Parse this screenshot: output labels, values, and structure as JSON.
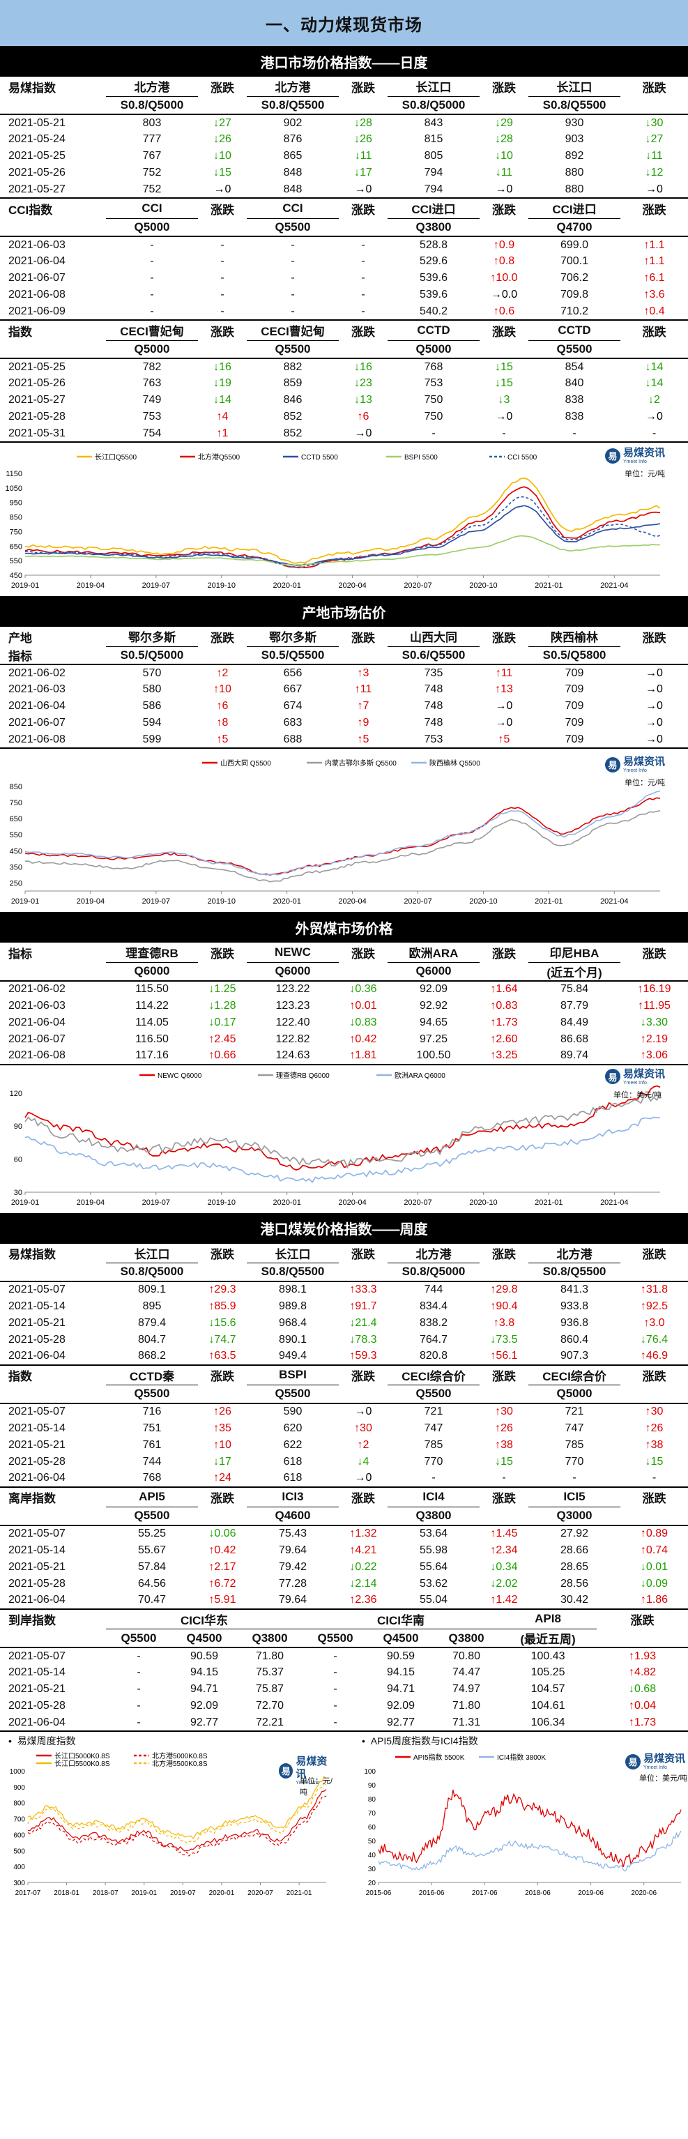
{
  "page_title": "一、动力煤现货市场",
  "brand": {
    "name": "易煤资讯",
    "sub": "Ymeet Info",
    "unit_yuan": "单位：元/吨",
    "unit_usd": "单位：美元/吨"
  },
  "sec1": {
    "title": "港口市场价格指数——日度",
    "t1": {
      "head1": [
        "易煤指数",
        "北方港",
        "涨跌",
        "北方港",
        "涨跌",
        "长江口",
        "涨跌",
        "长江口",
        "涨跌"
      ],
      "head2": [
        "",
        "S0.8/Q5000",
        "",
        "S0.8/Q5500",
        "",
        "S0.8/Q5000",
        "",
        "S0.8/Q5500",
        ""
      ],
      "rows": [
        [
          "2021-05-21",
          "803",
          "↓27",
          "902",
          "↓28",
          "843",
          "↓29",
          "930",
          "↓30"
        ],
        [
          "2021-05-24",
          "777",
          "↓26",
          "876",
          "↓26",
          "815",
          "↓28",
          "903",
          "↓27"
        ],
        [
          "2021-05-25",
          "767",
          "↓10",
          "865",
          "↓11",
          "805",
          "↓10",
          "892",
          "↓11"
        ],
        [
          "2021-05-26",
          "752",
          "↓15",
          "848",
          "↓17",
          "794",
          "↓11",
          "880",
          "↓12"
        ],
        [
          "2021-05-27",
          "752",
          "→0",
          "848",
          "→0",
          "794",
          "→0",
          "880",
          "→0"
        ]
      ]
    },
    "t2": {
      "head1": [
        "CCI指数",
        "CCI",
        "涨跌",
        "CCI",
        "涨跌",
        "CCI进口",
        "涨跌",
        "CCI进口",
        "涨跌"
      ],
      "head2": [
        "",
        "Q5000",
        "",
        "Q5500",
        "",
        "Q3800",
        "",
        "Q4700",
        ""
      ],
      "rows": [
        [
          "2021-06-03",
          "-",
          "-",
          "-",
          "-",
          "528.8",
          "↑0.9",
          "699.0",
          "↑1.1"
        ],
        [
          "2021-06-04",
          "-",
          "-",
          "-",
          "-",
          "529.6",
          "↑0.8",
          "700.1",
          "↑1.1"
        ],
        [
          "2021-06-07",
          "-",
          "-",
          "-",
          "-",
          "539.6",
          "↑10.0",
          "706.2",
          "↑6.1"
        ],
        [
          "2021-06-08",
          "-",
          "-",
          "-",
          "-",
          "539.6",
          "→0.0",
          "709.8",
          "↑3.6"
        ],
        [
          "2021-06-09",
          "-",
          "-",
          "-",
          "-",
          "540.2",
          "↑0.6",
          "710.2",
          "↑0.4"
        ]
      ]
    },
    "t3": {
      "head1": [
        "指数",
        "CECI曹妃甸",
        "涨跌",
        "CECI曹妃甸",
        "涨跌",
        "CCTD",
        "涨跌",
        "CCTD",
        "涨跌"
      ],
      "head2": [
        "",
        "Q5000",
        "",
        "Q5500",
        "",
        "Q5000",
        "",
        "Q5500",
        ""
      ],
      "rows": [
        [
          "2021-05-25",
          "782",
          "↓16",
          "882",
          "↓16",
          "768",
          "↓15",
          "854",
          "↓14"
        ],
        [
          "2021-05-26",
          "763",
          "↓19",
          "859",
          "↓23",
          "753",
          "↓15",
          "840",
          "↓14"
        ],
        [
          "2021-05-27",
          "749",
          "↓14",
          "846",
          "↓13",
          "750",
          "↓3",
          "838",
          "↓2"
        ],
        [
          "2021-05-28",
          "753",
          "↑4",
          "852",
          "↑6",
          "750",
          "→0",
          "838",
          "→0"
        ],
        [
          "2021-05-31",
          "754",
          "↑1",
          "852",
          "→0",
          "-",
          "-",
          "-",
          "-"
        ]
      ]
    },
    "chart": {
      "type": "line",
      "legend": [
        "长江口Q5500",
        "北方港Q5500",
        "CCTD 5500",
        "BSPI 5500",
        "CCI 5500"
      ],
      "colors": [
        "#f5b800",
        "#e00000",
        "#2f4fa0",
        "#9ed06a",
        "#2f5fb0"
      ],
      "yticks": [
        "1150",
        "1050",
        "950",
        "850",
        "750",
        "650",
        "550",
        "450"
      ],
      "ylim": [
        450,
        1150
      ],
      "xticks": [
        "2019-01",
        "2019-04",
        "2019-07",
        "2019-10",
        "2020-01",
        "2020-04",
        "2020-07",
        "2020-10",
        "2021-01",
        "2021-04"
      ]
    }
  },
  "sec2": {
    "title": "产地市场估价",
    "head1": [
      "产地",
      "鄂尔多斯",
      "涨跌",
      "鄂尔多斯",
      "涨跌",
      "山西大同",
      "涨跌",
      "陕西榆林",
      "涨跌"
    ],
    "head2": [
      "指标",
      "S0.5/Q5000",
      "",
      "S0.5/Q5500",
      "",
      "S0.6/Q5500",
      "",
      "S0.5/Q5800",
      ""
    ],
    "rows": [
      [
        "2021-06-02",
        "570",
        "↑2",
        "656",
        "↑3",
        "735",
        "↑11",
        "709",
        "→0"
      ],
      [
        "2021-06-03",
        "580",
        "↑10",
        "667",
        "↑11",
        "748",
        "↑13",
        "709",
        "→0"
      ],
      [
        "2021-06-04",
        "586",
        "↑6",
        "674",
        "↑7",
        "748",
        "→0",
        "709",
        "→0"
      ],
      [
        "2021-06-07",
        "594",
        "↑8",
        "683",
        "↑9",
        "748",
        "→0",
        "709",
        "→0"
      ],
      [
        "2021-06-08",
        "599",
        "↑5",
        "688",
        "↑5",
        "753",
        "↑5",
        "709",
        "→0"
      ]
    ],
    "chart": {
      "type": "line",
      "legend": [
        "山西大同 Q5500",
        "内蒙古鄂尔多斯 Q5500",
        "陕西榆林 Q5500"
      ],
      "colors": [
        "#e00000",
        "#9a9a9a",
        "#8fb4e8"
      ],
      "yticks": [
        "850",
        "750",
        "650",
        "550",
        "450",
        "350",
        "250"
      ],
      "ylim": [
        200,
        850
      ],
      "xticks": [
        "2019-01",
        "2019-04",
        "2019-07",
        "2019-10",
        "2020-01",
        "2020-04",
        "2020-07",
        "2020-10",
        "2021-01",
        "2021-04"
      ]
    }
  },
  "sec3": {
    "title": "外贸煤市场价格",
    "head1": [
      "指标",
      "理查德RB",
      "涨跌",
      "NEWC",
      "涨跌",
      "欧洲ARA",
      "涨跌",
      "印尼HBA",
      "涨跌"
    ],
    "head2": [
      "",
      "Q6000",
      "",
      "Q6000",
      "",
      "Q6000",
      "",
      "(近五个月)",
      ""
    ],
    "rows": [
      [
        "2021-06-02",
        "115.50",
        "↓1.25",
        "123.22",
        "↓0.36",
        "92.09",
        "↑1.64",
        "75.84",
        "↑16.19"
      ],
      [
        "2021-06-03",
        "114.22",
        "↓1.28",
        "123.23",
        "↑0.01",
        "92.92",
        "↑0.83",
        "87.79",
        "↑11.95"
      ],
      [
        "2021-06-04",
        "114.05",
        "↓0.17",
        "122.40",
        "↓0.83",
        "94.65",
        "↑1.73",
        "84.49",
        "↓3.30"
      ],
      [
        "2021-06-07",
        "116.50",
        "↑2.45",
        "122.82",
        "↑0.42",
        "97.25",
        "↑2.60",
        "86.68",
        "↑2.19"
      ],
      [
        "2021-06-08",
        "117.16",
        "↑0.66",
        "124.63",
        "↑1.81",
        "100.50",
        "↑3.25",
        "89.74",
        "↑3.06"
      ]
    ],
    "chart": {
      "type": "line",
      "legend": [
        "NEWC Q6000",
        "理查德RB Q6000",
        "欧洲ARA Q6000"
      ],
      "colors": [
        "#e00000",
        "#9a9a9a",
        "#8fb4e8"
      ],
      "yticks": [
        "120",
        "90",
        "60",
        "30"
      ],
      "ylim": [
        30,
        130
      ],
      "xticks": [
        "2019-01",
        "2019-04",
        "2019-07",
        "2019-10",
        "2020-01",
        "2020-04",
        "2020-07",
        "2020-10",
        "2021-01",
        "2021-04"
      ]
    }
  },
  "sec4": {
    "title": "港口煤炭价格指数——周度",
    "t1": {
      "head1": [
        "易煤指数",
        "长江口",
        "涨跌",
        "长江口",
        "涨跌",
        "北方港",
        "涨跌",
        "北方港",
        "涨跌"
      ],
      "head2": [
        "",
        "S0.8/Q5000",
        "",
        "S0.8/Q5500",
        "",
        "S0.8/Q5000",
        "",
        "S0.8/Q5500",
        ""
      ],
      "rows": [
        [
          "2021-05-07",
          "809.1",
          "↑29.3",
          "898.1",
          "↑33.3",
          "744",
          "↑29.8",
          "841.3",
          "↑31.8"
        ],
        [
          "2021-05-14",
          "895",
          "↑85.9",
          "989.8",
          "↑91.7",
          "834.4",
          "↑90.4",
          "933.8",
          "↑92.5"
        ],
        [
          "2021-05-21",
          "879.4",
          "↓15.6",
          "968.4",
          "↓21.4",
          "838.2",
          "↑3.8",
          "936.8",
          "↑3.0"
        ],
        [
          "2021-05-28",
          "804.7",
          "↓74.7",
          "890.1",
          "↓78.3",
          "764.7",
          "↓73.5",
          "860.4",
          "↓76.4"
        ],
        [
          "2021-06-04",
          "868.2",
          "↑63.5",
          "949.4",
          "↑59.3",
          "820.8",
          "↑56.1",
          "907.3",
          "↑46.9"
        ]
      ]
    },
    "t2": {
      "head1": [
        "指数",
        "CCTD秦",
        "涨跌",
        "BSPI",
        "涨跌",
        "CECI综合价",
        "涨跌",
        "CECI综合价",
        "涨跌"
      ],
      "head2": [
        "",
        "Q5500",
        "",
        "Q5500",
        "",
        "Q5500",
        "",
        "Q5000",
        ""
      ],
      "rows": [
        [
          "2021-05-07",
          "716",
          "↑26",
          "590",
          "→0",
          "721",
          "↑30",
          "721",
          "↑30"
        ],
        [
          "2021-05-14",
          "751",
          "↑35",
          "620",
          "↑30",
          "747",
          "↑26",
          "747",
          "↑26"
        ],
        [
          "2021-05-21",
          "761",
          "↑10",
          "622",
          "↑2",
          "785",
          "↑38",
          "785",
          "↑38"
        ],
        [
          "2021-05-28",
          "744",
          "↓17",
          "618",
          "↓4",
          "770",
          "↓15",
          "770",
          "↓15"
        ],
        [
          "2021-06-04",
          "768",
          "↑24",
          "618",
          "→0",
          "-",
          "-",
          "-",
          "-"
        ]
      ]
    },
    "t3": {
      "head1": [
        "离岸指数",
        "API5",
        "涨跌",
        "ICI3",
        "涨跌",
        "ICI4",
        "涨跌",
        "ICI5",
        "涨跌"
      ],
      "head2": [
        "",
        "Q5500",
        "",
        "Q4600",
        "",
        "Q3800",
        "",
        "Q3000",
        ""
      ],
      "rows": [
        [
          "2021-05-07",
          "55.25",
          "↓0.06",
          "75.43",
          "↑1.32",
          "53.64",
          "↑1.45",
          "27.92",
          "↑0.89"
        ],
        [
          "2021-05-14",
          "55.67",
          "↑0.42",
          "79.64",
          "↑4.21",
          "55.98",
          "↑2.34",
          "28.66",
          "↑0.74"
        ],
        [
          "2021-05-21",
          "57.84",
          "↑2.17",
          "79.42",
          "↓0.22",
          "55.64",
          "↓0.34",
          "28.65",
          "↓0.01"
        ],
        [
          "2021-05-28",
          "64.56",
          "↑6.72",
          "77.28",
          "↓2.14",
          "53.62",
          "↓2.02",
          "28.56",
          "↓0.09"
        ],
        [
          "2021-06-04",
          "70.47",
          "↑5.91",
          "79.64",
          "↑2.36",
          "55.04",
          "↑1.42",
          "30.42",
          "↑1.86"
        ]
      ]
    },
    "t4": {
      "head1": [
        "到岸指数",
        "CICI华东",
        "CICI华南",
        "API8",
        "涨跌"
      ],
      "head2": [
        "",
        "Q5500",
        "Q4500",
        "Q3800",
        "Q5500",
        "Q4500",
        "Q3800",
        "(最近五周)",
        ""
      ],
      "rows": [
        [
          "2021-05-07",
          "-",
          "90.59",
          "71.80",
          "-",
          "90.59",
          "70.80",
          "100.43",
          "↑1.93"
        ],
        [
          "2021-05-14",
          "-",
          "94.15",
          "75.37",
          "-",
          "94.15",
          "74.47",
          "105.25",
          "↑4.82"
        ],
        [
          "2021-05-21",
          "-",
          "94.71",
          "75.87",
          "-",
          "94.71",
          "74.97",
          "104.57",
          "↓0.68"
        ],
        [
          "2021-05-28",
          "-",
          "92.09",
          "72.70",
          "-",
          "92.09",
          "71.80",
          "104.61",
          "↑0.04"
        ],
        [
          "2021-06-04",
          "-",
          "92.77",
          "72.21",
          "-",
          "92.77",
          "71.31",
          "106.34",
          "↑1.73"
        ]
      ]
    },
    "chart_left": {
      "caption": "易煤周度指数",
      "type": "line",
      "legend": [
        "长江口5000K0.8S",
        "长江口5500K0.8S",
        "北方港5000K0.8S",
        "北方港5500K0.8S"
      ],
      "colors": [
        "#e00000",
        "#f5b800",
        "#e00000",
        "#f5b800"
      ],
      "yticks": [
        "1000",
        "900",
        "800",
        "700",
        "600",
        "500",
        "400",
        "300"
      ],
      "ylim": [
        300,
        1000
      ],
      "xticks": [
        "2017-07",
        "2018-01",
        "2018-07",
        "2019-01",
        "2019-07",
        "2020-01",
        "2020-07",
        "2021-01"
      ]
    },
    "chart_right": {
      "caption": "API5周度指数与ICI4指数",
      "type": "line",
      "legend": [
        "API5指数 5500K",
        "ICI4指数 3800K"
      ],
      "colors": [
        "#e00000",
        "#8fb4e8"
      ],
      "yticks": [
        "100",
        "90",
        "80",
        "70",
        "60",
        "50",
        "40",
        "30",
        "20"
      ],
      "ylim": [
        20,
        100
      ],
      "xticks": [
        "2015-06",
        "2016-06",
        "2017-06",
        "2018-06",
        "2019-06",
        "2020-06"
      ]
    }
  }
}
